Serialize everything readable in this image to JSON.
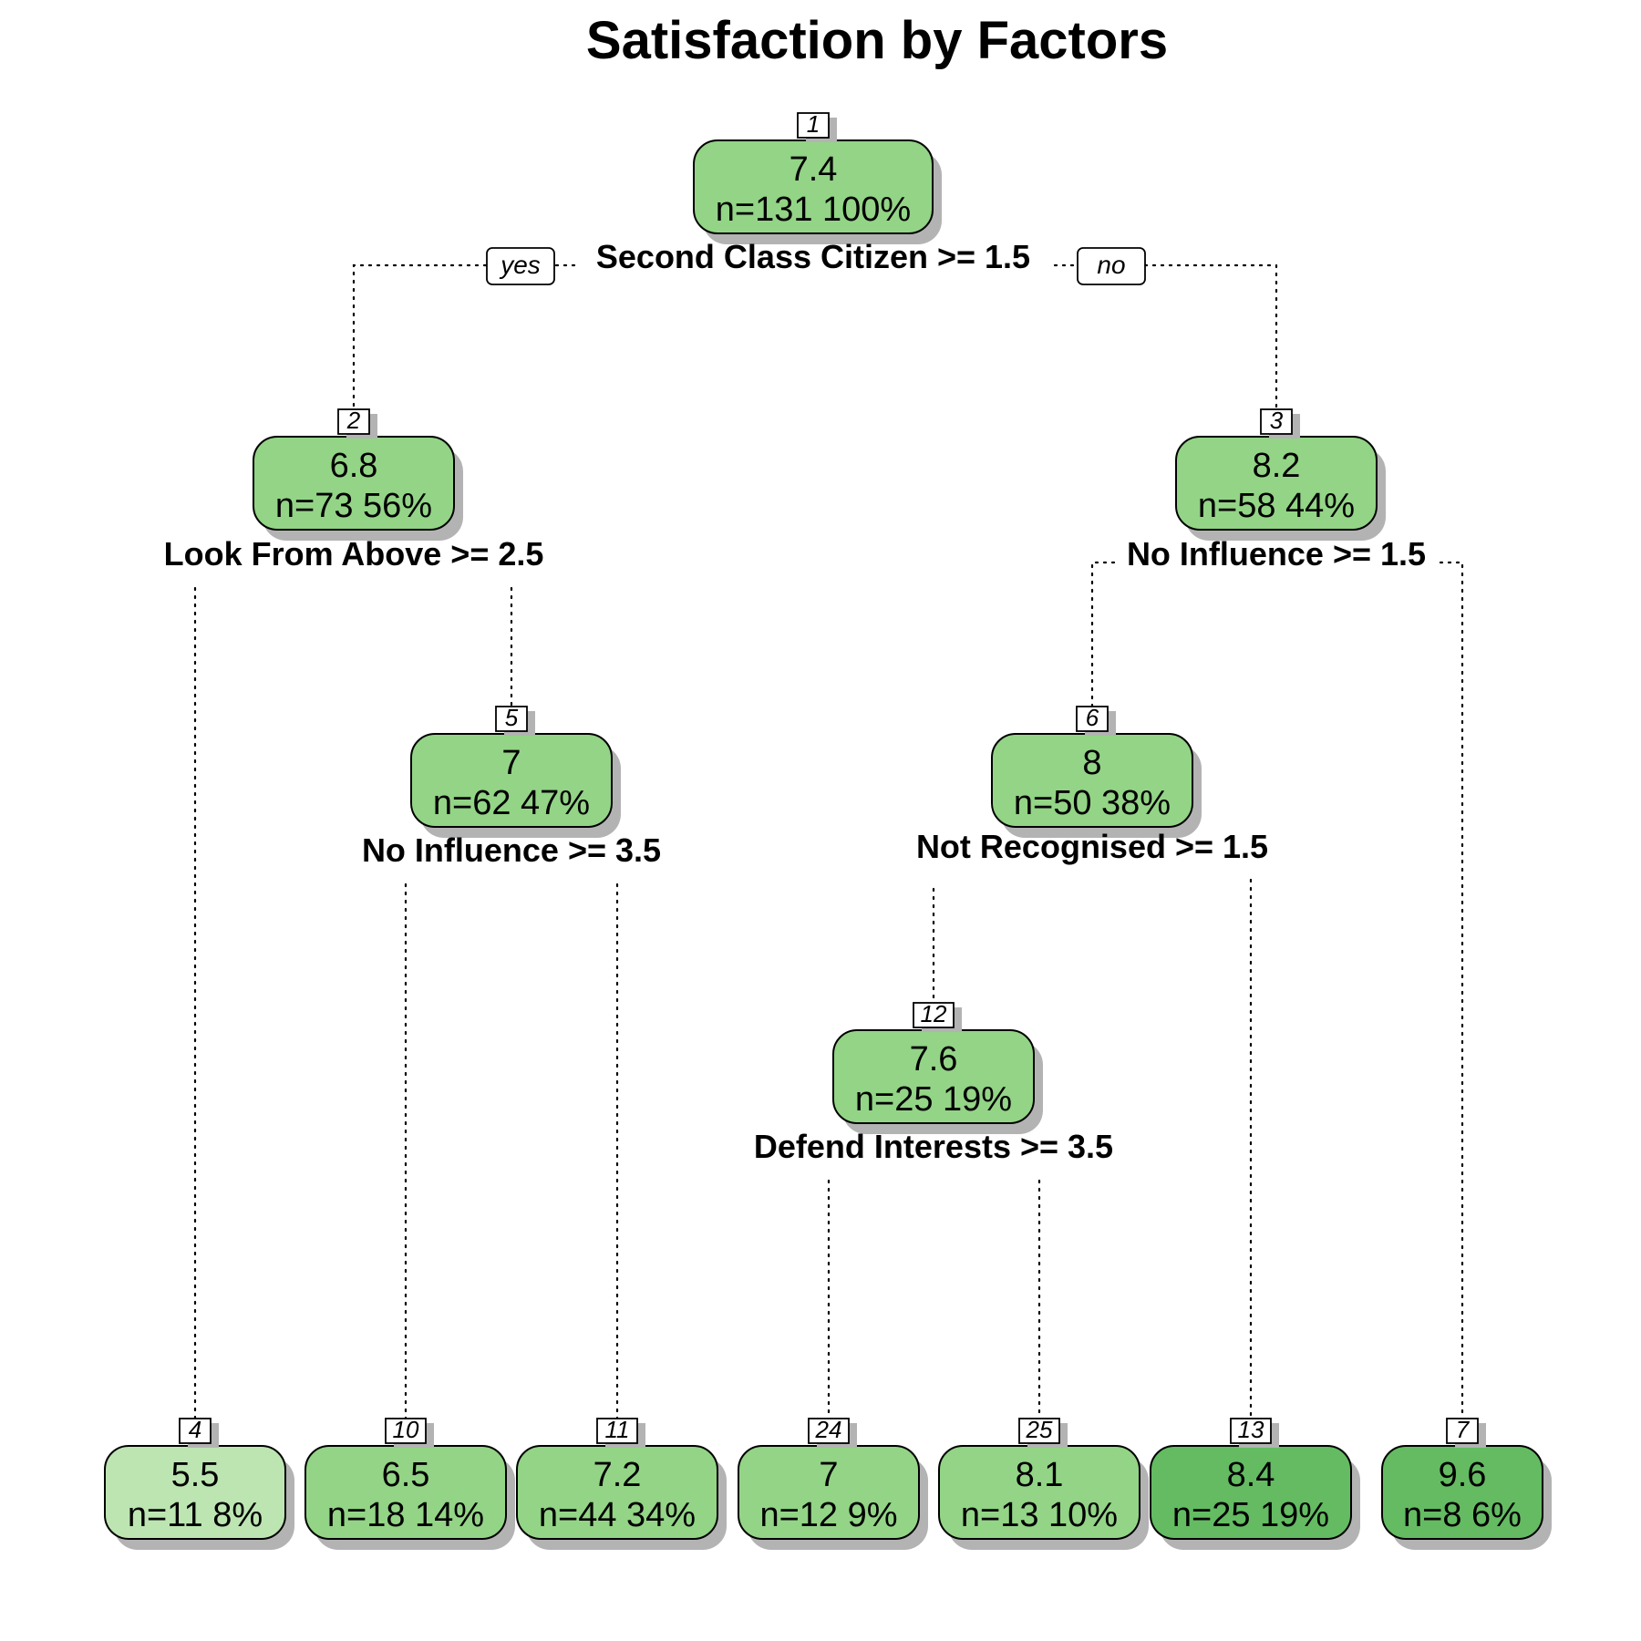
{
  "title": "Satisfaction by Factors",
  "branch_labels": {
    "yes": "yes",
    "no": "no"
  },
  "colors": {
    "light": "#bde5b2",
    "mid": "#93d486",
    "dark": "#64bb62"
  },
  "nodes": [
    {
      "id": "1",
      "value": "7.4",
      "stats": "n=131  100%",
      "color": "mid",
      "split": "Second Class Citizen >= 1.5"
    },
    {
      "id": "2",
      "value": "6.8",
      "stats": "n=73  56%",
      "color": "mid",
      "split": "Look From Above >= 2.5"
    },
    {
      "id": "3",
      "value": "8.2",
      "stats": "n=58  44%",
      "color": "mid",
      "split": "No Influence >= 1.5"
    },
    {
      "id": "5",
      "value": "7",
      "stats": "n=62  47%",
      "color": "mid",
      "split": "No Influence >= 3.5"
    },
    {
      "id": "6",
      "value": "8",
      "stats": "n=50  38%",
      "color": "mid",
      "split": "Not Recognised >= 1.5"
    },
    {
      "id": "12",
      "value": "7.6",
      "stats": "n=25  19%",
      "color": "mid",
      "split": "Defend Interests >= 3.5"
    },
    {
      "id": "4",
      "value": "5.5",
      "stats": "n=11  8%",
      "color": "light"
    },
    {
      "id": "10",
      "value": "6.5",
      "stats": "n=18  14%",
      "color": "mid"
    },
    {
      "id": "11",
      "value": "7.2",
      "stats": "n=44  34%",
      "color": "mid"
    },
    {
      "id": "24",
      "value": "7",
      "stats": "n=12  9%",
      "color": "mid"
    },
    {
      "id": "25",
      "value": "8.1",
      "stats": "n=13  10%",
      "color": "mid"
    },
    {
      "id": "13",
      "value": "8.4",
      "stats": "n=25  19%",
      "color": "dark"
    },
    {
      "id": "7",
      "value": "9.6",
      "stats": "n=8  6%",
      "color": "dark"
    }
  ]
}
